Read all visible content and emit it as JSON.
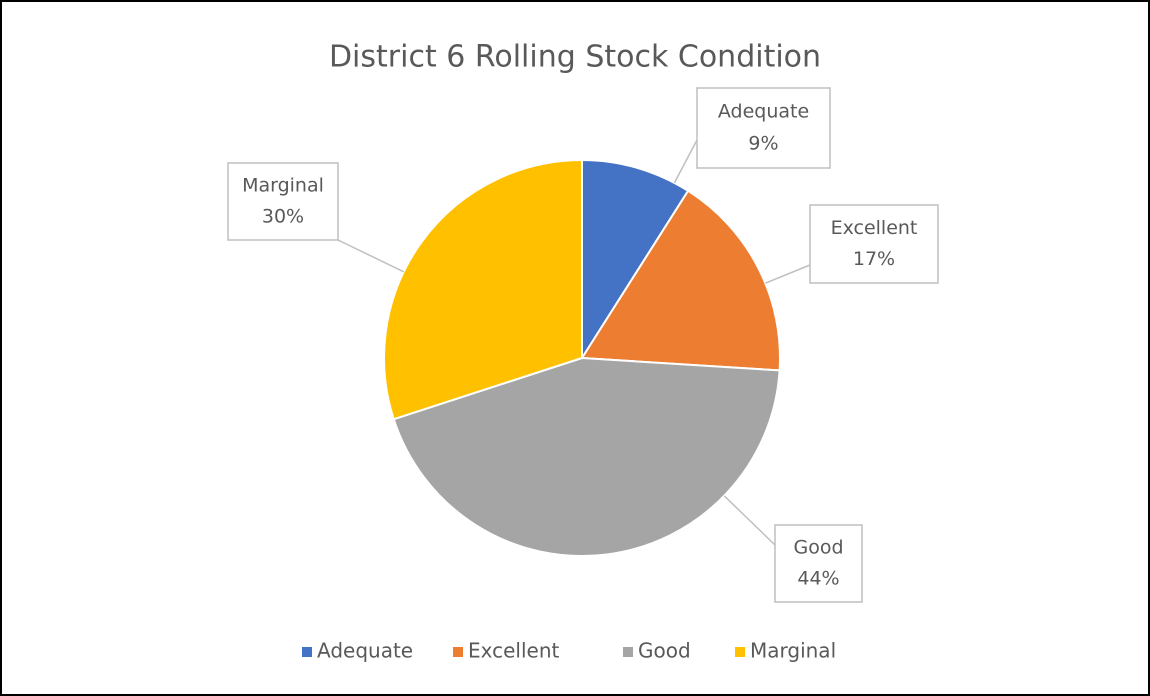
{
  "chart_data": {
    "type": "pie",
    "title": "District 6 Rolling Stock Condition",
    "categories": [
      "Adequate",
      "Excellent",
      "Good",
      "Marginal"
    ],
    "values": [
      9,
      17,
      44,
      30
    ],
    "value_labels": [
      "9%",
      "17%",
      "44%",
      "30%"
    ],
    "colors": [
      "#4472c4",
      "#ed7d31",
      "#a5a5a5",
      "#ffc000"
    ],
    "legend": "bottom"
  }
}
